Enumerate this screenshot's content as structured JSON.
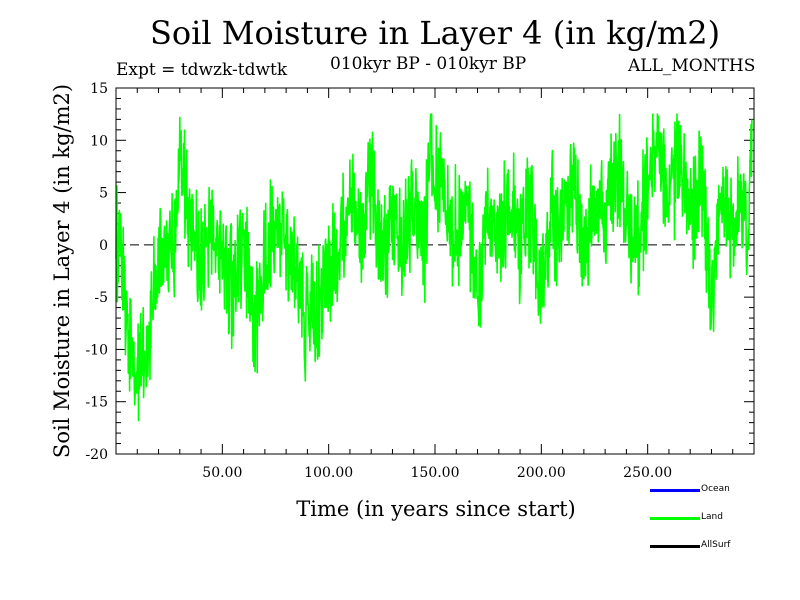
{
  "chart_data": {
    "type": "line",
    "title": "Soil Moisture in Layer 4 (in kg/m2)",
    "subtitle_left": "Expt = tdwzk-tdwtk",
    "subtitle_center": "010kyr BP - 010kyr BP",
    "subtitle_right": "ALL_MONTHS",
    "xlabel": "Time (in years since start)",
    "ylabel": "Soil Moisture in Layer 4 (in kg/m2)",
    "xlim": [
      0,
      300
    ],
    "ylim": [
      -20,
      15
    ],
    "xticks": [
      50,
      100,
      150,
      200,
      250
    ],
    "xtick_labels": [
      "50.00",
      "100.00",
      "150.00",
      "200.00",
      "250.00"
    ],
    "yticks": [
      -20,
      -15,
      -10,
      -5,
      0,
      5,
      10,
      15
    ],
    "ytick_labels": [
      "-20",
      "-15",
      "-10",
      "-5",
      "0",
      "5",
      "10",
      "15"
    ],
    "zero_line": true,
    "grid": false,
    "legend_position": "bottom-right",
    "legend": [
      {
        "name": "Ocean",
        "color": "#0000ff"
      },
      {
        "name": "Land",
        "color": "#00ff00"
      },
      {
        "name": "AllSurf",
        "color": "#000000"
      }
    ],
    "series": [
      {
        "name": "Land",
        "color": "#00ff00",
        "x": [
          0,
          3,
          5,
          8,
          10,
          13,
          15,
          18,
          20,
          25,
          28,
          30,
          35,
          40,
          45,
          50,
          55,
          60,
          65,
          70,
          75,
          80,
          85,
          90,
          95,
          100,
          105,
          110,
          115,
          120,
          125,
          130,
          135,
          140,
          145,
          148,
          150,
          155,
          160,
          165,
          170,
          175,
          180,
          185,
          190,
          195,
          200,
          205,
          210,
          215,
          220,
          225,
          230,
          235,
          240,
          245,
          250,
          255,
          260,
          265,
          270,
          275,
          280,
          285,
          290,
          295,
          297,
          299
        ],
        "y": [
          0,
          -3,
          -8,
          -11,
          -14,
          -9,
          -11,
          -4,
          -2,
          -1,
          1,
          7,
          2,
          -2,
          3,
          -1,
          -4,
          1,
          -8,
          -2,
          3,
          0,
          -4,
          -8,
          -6,
          -3,
          0,
          4,
          0,
          6,
          -2,
          3,
          0,
          4,
          -1,
          10,
          6,
          4,
          1,
          5,
          -5,
          3,
          0,
          5,
          -1,
          4,
          -6,
          3,
          1,
          6,
          -2,
          5,
          2,
          8,
          3,
          0,
          6,
          10,
          4,
          9,
          2,
          7,
          -5,
          4,
          2,
          4,
          0,
          12
        ]
      }
    ]
  }
}
